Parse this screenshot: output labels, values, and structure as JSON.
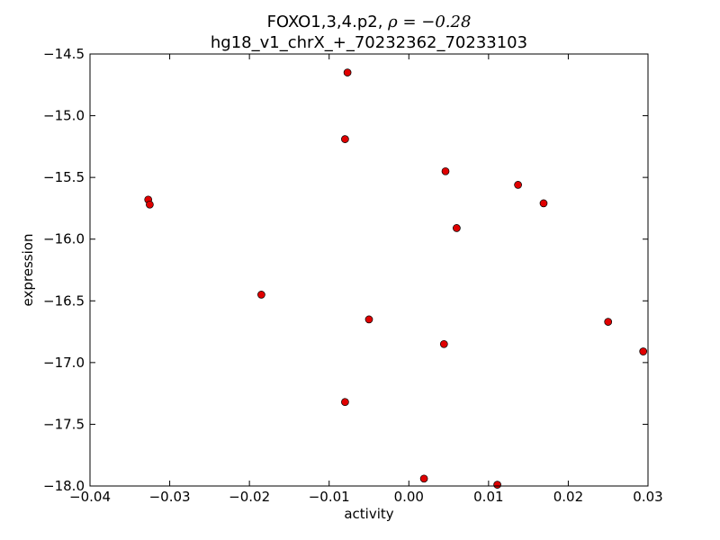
{
  "chart_data": {
    "type": "scatter",
    "title_line1_prefix": "FOXO1,3,4.p2, ",
    "title_line1_math": "ρ = −0.28",
    "title_line2": "hg18_v1_chrX_+_70232362_70233103",
    "xlabel": "activity",
    "ylabel": "expression",
    "xlim": [
      -0.04,
      0.03
    ],
    "ylim": [
      -18.0,
      -14.5
    ],
    "xticks": [
      -0.04,
      -0.03,
      -0.02,
      -0.01,
      0.0,
      0.01,
      0.02,
      0.03
    ],
    "xtick_labels": [
      "−0.04",
      "−0.03",
      "−0.02",
      "−0.01",
      "0.00",
      "0.01",
      "0.02",
      "0.03"
    ],
    "yticks": [
      -14.5,
      -15.0,
      -15.5,
      -16.0,
      -16.5,
      -17.0,
      -17.5,
      -18.0
    ],
    "ytick_labels": [
      "−14.5",
      "−15.0",
      "−15.5",
      "−16.0",
      "−16.5",
      "−17.0",
      "−17.5",
      "−18.0"
    ],
    "grid": false,
    "marker_color": "#e00000",
    "points": [
      {
        "x": -0.0077,
        "y": -14.65
      },
      {
        "x": -0.008,
        "y": -15.19
      },
      {
        "x": 0.0046,
        "y": -15.45
      },
      {
        "x": 0.0137,
        "y": -15.56
      },
      {
        "x": -0.0327,
        "y": -15.68
      },
      {
        "x": -0.0325,
        "y": -15.72
      },
      {
        "x": 0.0169,
        "y": -15.71
      },
      {
        "x": 0.006,
        "y": -15.91
      },
      {
        "x": -0.0185,
        "y": -16.45
      },
      {
        "x": -0.005,
        "y": -16.65
      },
      {
        "x": 0.025,
        "y": -16.67
      },
      {
        "x": 0.0044,
        "y": -16.85
      },
      {
        "x": 0.0294,
        "y": -16.91
      },
      {
        "x": -0.008,
        "y": -17.32
      },
      {
        "x": 0.0019,
        "y": -17.94
      },
      {
        "x": 0.0111,
        "y": -17.99
      }
    ]
  }
}
